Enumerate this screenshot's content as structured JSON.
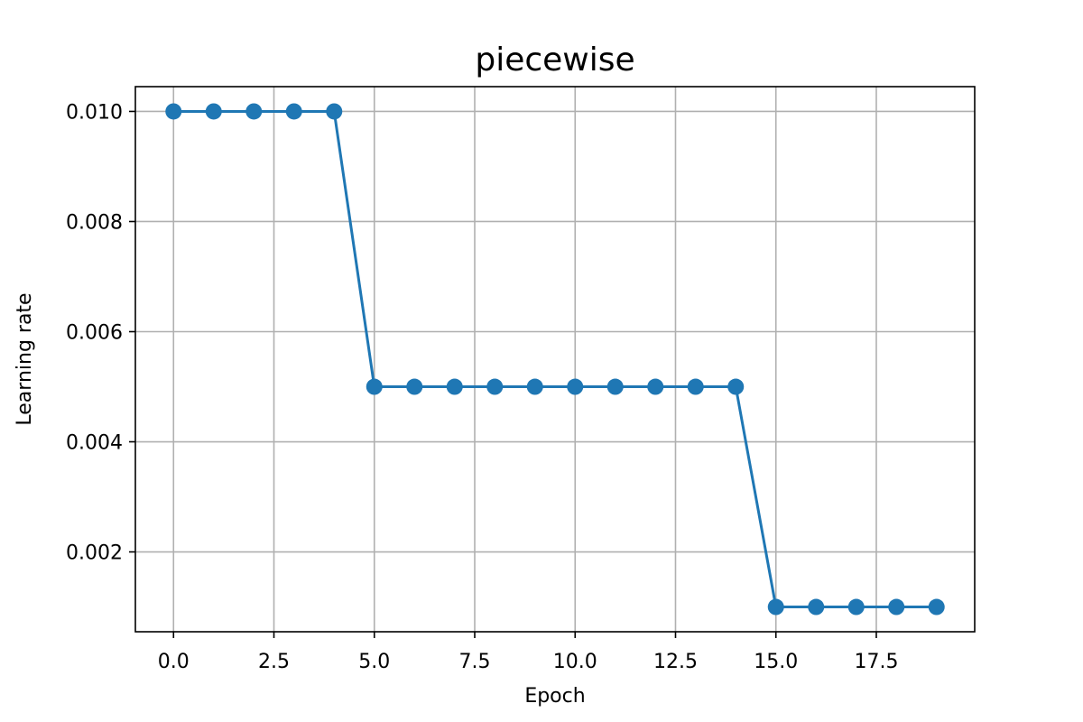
{
  "chart_data": {
    "type": "line",
    "title": "piecewise",
    "xlabel": "Epoch",
    "ylabel": "Learning rate",
    "xlim": [
      -0.95,
      19.95
    ],
    "ylim": [
      0.00055,
      0.01045
    ],
    "x_ticks": [
      0.0,
      2.5,
      5.0,
      7.5,
      10.0,
      12.5,
      15.0,
      17.5
    ],
    "x_tick_labels": [
      "0.0",
      "2.5",
      "5.0",
      "7.5",
      "10.0",
      "12.5",
      "15.0",
      "17.5"
    ],
    "y_ticks": [
      0.002,
      0.004,
      0.006,
      0.008,
      0.01
    ],
    "y_tick_labels": [
      "0.002",
      "0.004",
      "0.006",
      "0.008",
      "0.010"
    ],
    "grid": true,
    "series": [
      {
        "color": "#1f77b4",
        "marker": "circle",
        "x": [
          0,
          1,
          2,
          3,
          4,
          5,
          6,
          7,
          8,
          9,
          10,
          11,
          12,
          13,
          14,
          15,
          16,
          17,
          18,
          19
        ],
        "y": [
          0.01,
          0.01,
          0.01,
          0.01,
          0.01,
          0.005,
          0.005,
          0.005,
          0.005,
          0.005,
          0.005,
          0.005,
          0.005,
          0.005,
          0.005,
          0.001,
          0.001,
          0.001,
          0.001,
          0.001
        ]
      }
    ]
  }
}
